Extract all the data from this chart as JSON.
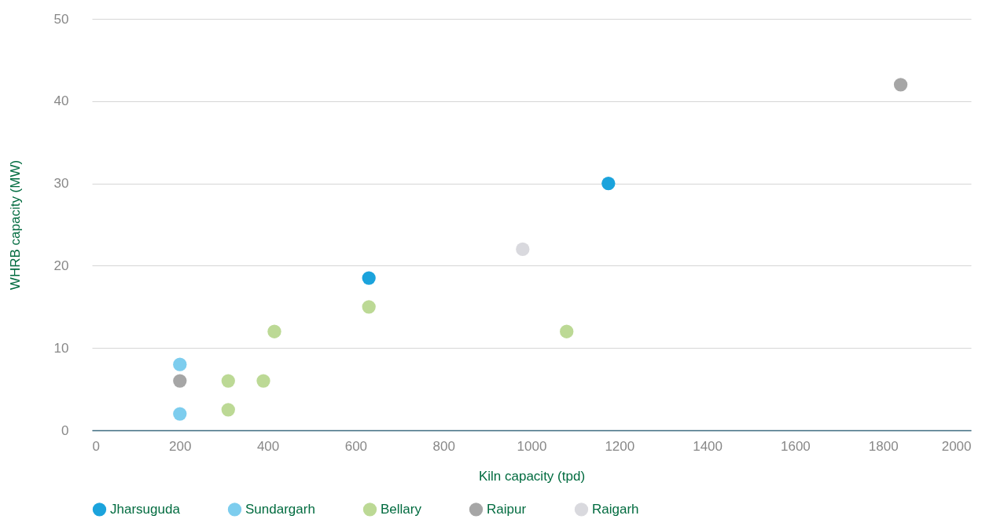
{
  "chart_data": {
    "type": "scatter",
    "xlabel": "Kiln capacity (tpd)",
    "ylabel": "WHRB capacity (MW)",
    "xlim": [
      0,
      2000
    ],
    "xticks": [
      0,
      200,
      400,
      600,
      800,
      1000,
      1200,
      1400,
      1600,
      1800,
      2000
    ],
    "ylim": [
      0,
      50
    ],
    "yticks": [
      0,
      10,
      20,
      30,
      40,
      50
    ],
    "grid": "y",
    "legend": "bottom",
    "marker": "circle",
    "series": [
      {
        "name": "Jharsuguda",
        "color": "#1ba3dc",
        "x": [
          630,
          1175
        ],
        "values": [
          18.5,
          30
        ]
      },
      {
        "name": "Sundargarh",
        "color": "#7dcdee",
        "x": [
          200,
          200
        ],
        "values": [
          8,
          2
        ]
      },
      {
        "name": "Bellary",
        "color": "#bcd995",
        "x": [
          310,
          310,
          390,
          415,
          630,
          1080
        ],
        "values": [
          6,
          2.5,
          6,
          12,
          15,
          12
        ]
      },
      {
        "name": "Raipur",
        "color": "#a6a6a6",
        "x": [
          200,
          1840
        ],
        "values": [
          6,
          42
        ]
      },
      {
        "name": "Raigarh",
        "color": "#d9d9de",
        "x": [
          980
        ],
        "values": [
          22
        ]
      }
    ]
  }
}
